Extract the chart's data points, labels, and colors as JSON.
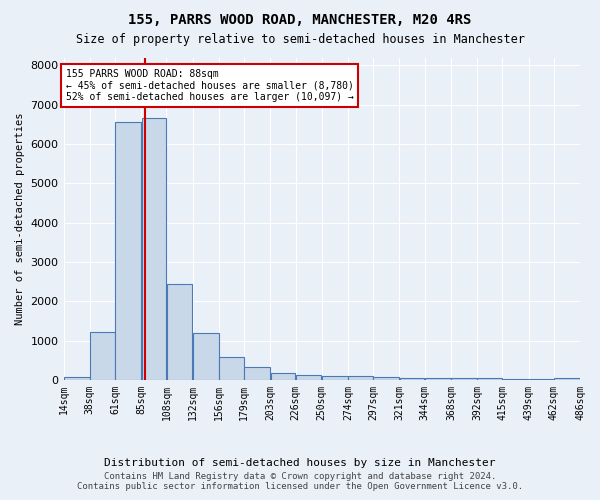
{
  "title": "155, PARRS WOOD ROAD, MANCHESTER, M20 4RS",
  "subtitle": "Size of property relative to semi-detached houses in Manchester",
  "xlabel": "Distribution of semi-detached houses by size in Manchester",
  "ylabel": "Number of semi-detached properties",
  "footer_line1": "Contains HM Land Registry data © Crown copyright and database right 2024.",
  "footer_line2": "Contains public sector information licensed under the Open Government Licence v3.0.",
  "bar_edges": [
    14,
    38,
    61,
    85,
    108,
    132,
    156,
    179,
    203,
    226,
    250,
    274,
    297,
    321,
    344,
    368,
    392,
    415,
    439,
    462,
    486
  ],
  "bar_heights": [
    80,
    1220,
    6550,
    6650,
    2450,
    1180,
    580,
    340,
    185,
    135,
    100,
    100,
    85,
    60,
    55,
    50,
    40,
    35,
    30,
    55
  ],
  "bar_color": "#c8d8e8",
  "bar_edge_color": "#4a7ab5",
  "property_size": 88,
  "red_line_color": "#cc0000",
  "annotation_text_line1": "155 PARRS WOOD ROAD: 88sqm",
  "annotation_text_line2": "← 45% of semi-detached houses are smaller (8,780)",
  "annotation_text_line3": "52% of semi-detached houses are larger (10,097) →",
  "annotation_box_color": "#cc0000",
  "ylim": [
    0,
    8200
  ],
  "yticks": [
    0,
    1000,
    2000,
    3000,
    4000,
    5000,
    6000,
    7000,
    8000
  ],
  "xtick_labels": [
    "14sqm",
    "38sqm",
    "61sqm",
    "85sqm",
    "108sqm",
    "132sqm",
    "156sqm",
    "179sqm",
    "203sqm",
    "226sqm",
    "250sqm",
    "274sqm",
    "297sqm",
    "321sqm",
    "344sqm",
    "368sqm",
    "392sqm",
    "415sqm",
    "439sqm",
    "462sqm",
    "486sqm"
  ],
  "background_color": "#eaf0f8",
  "plot_bg_color": "#eaf0f8",
  "grid_color": "#ffffff"
}
